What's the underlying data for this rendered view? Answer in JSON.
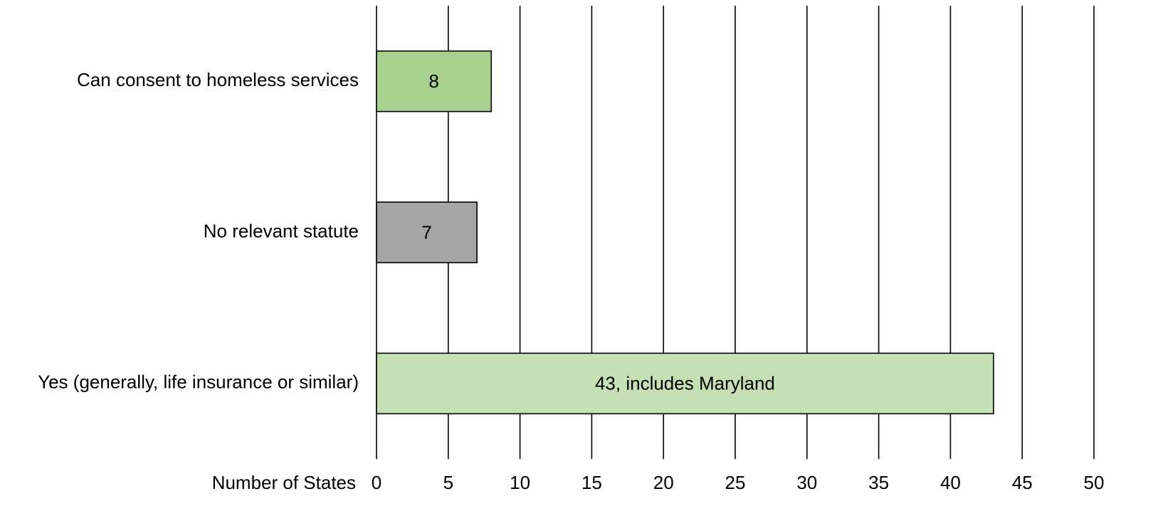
{
  "chart_data": {
    "type": "hbar",
    "categories": [
      "Can consent to homeless services",
      "No relevant statute",
      "Yes (generally, life insurance or similar)"
    ],
    "values": [
      8,
      7,
      43
    ],
    "value_labels": [
      "8",
      "7",
      "43, includes Maryland"
    ],
    "colors": [
      "#a9d18e",
      "#a5a5a5",
      "#c5e0b4"
    ],
    "xlabel": "Number of States",
    "xlim": [
      0,
      50
    ],
    "xticks": [
      0,
      5,
      10,
      15,
      20,
      25,
      30,
      35,
      40,
      45,
      50
    ],
    "grid": true
  }
}
